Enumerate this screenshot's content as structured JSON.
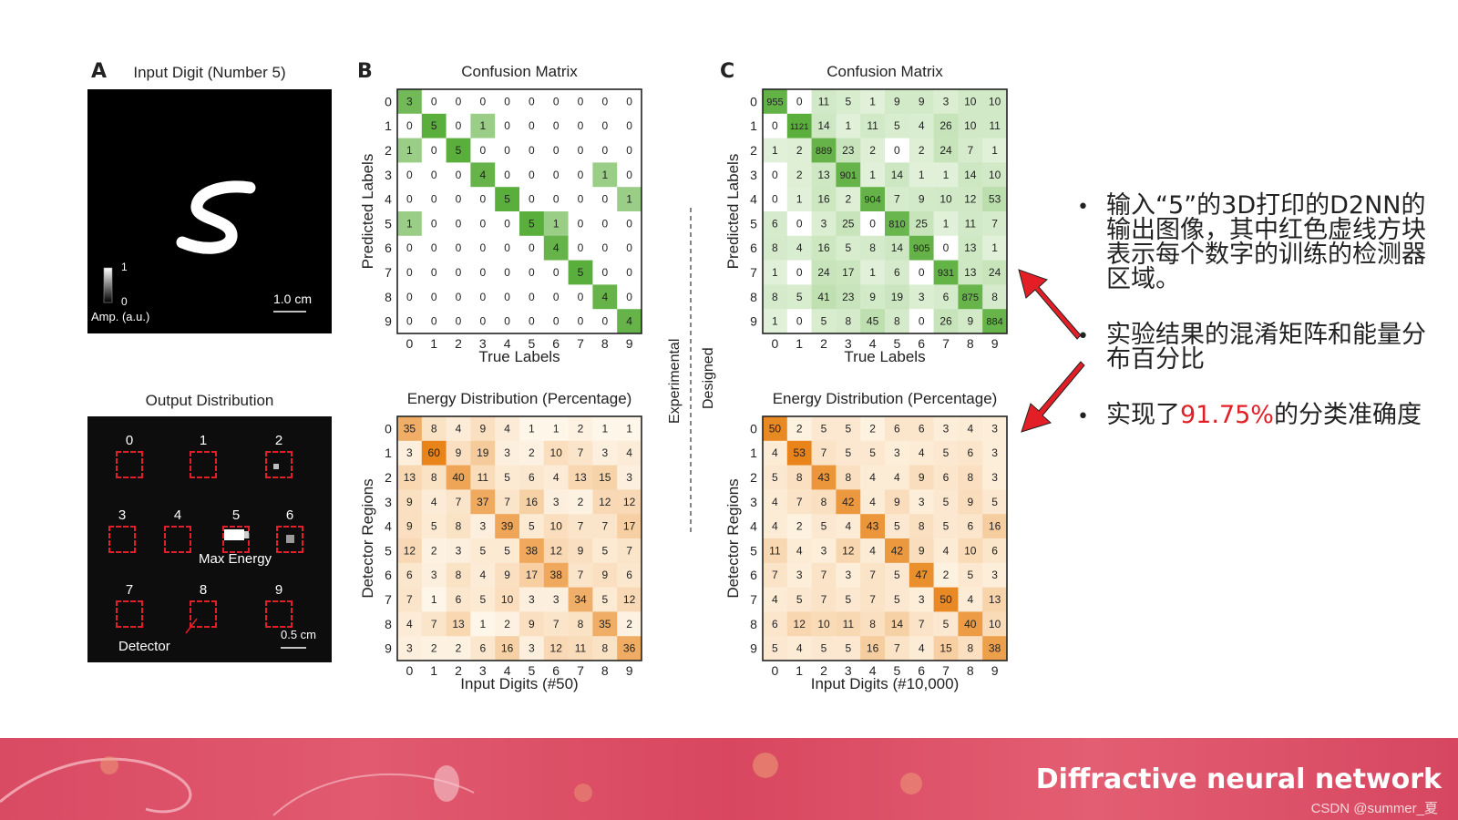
{
  "panels": {
    "a": {
      "letter": "A",
      "title": "Input Digit (Number 5)",
      "colorbar_max": "1",
      "colorbar_min": "0",
      "colorbar_label": "Amp. (a.u.)",
      "scale": "1.0 cm"
    },
    "a2": {
      "title": "Output Distribution",
      "detectors": [
        "0",
        "1",
        "2",
        "3",
        "4",
        "5",
        "6",
        "7",
        "8",
        "9"
      ],
      "max_energy_label": "Max Energy",
      "detector_label": "Detector",
      "scale": "0.5 cm"
    },
    "b": {
      "letter": "B"
    },
    "c": {
      "letter": "C"
    },
    "divider": {
      "left_label": "Experimental",
      "right_label": "Designed"
    }
  },
  "bullets": [
    {
      "text": "输入“5”的3D打印的D2NN的输出图像，其中红色虚线方块表示每个数字的训练的检测器区域。",
      "pre": "",
      "highlight": "",
      "post": ""
    },
    {
      "text": "实验结果的混淆矩阵和能量分布百分比",
      "pre": "",
      "highlight": "",
      "post": ""
    },
    {
      "text": "",
      "pre": "实现了",
      "highlight": "91.75%",
      "post": "的分类准确度"
    }
  ],
  "banner": {
    "title": "Diffractive neural network",
    "credit": "CSDN @summer_夏"
  },
  "colors": {
    "green": "#5aae3c",
    "orange": "#e8841a",
    "red_accent": "#e21f26",
    "banner": "#d94a63"
  },
  "chart_data": [
    {
      "type": "heatmap",
      "id": "B-confusion",
      "title": "Confusion Matrix",
      "xlabel": "True Labels",
      "ylabel": "Predicted Labels",
      "palette": "green",
      "x_ticks": [
        "0",
        "1",
        "2",
        "3",
        "4",
        "5",
        "6",
        "7",
        "8",
        "9"
      ],
      "y_ticks": [
        "0",
        "1",
        "2",
        "3",
        "4",
        "5",
        "6",
        "7",
        "8",
        "9"
      ],
      "max": 5,
      "values": [
        [
          3,
          0,
          0,
          0,
          0,
          0,
          0,
          0,
          0,
          0
        ],
        [
          0,
          5,
          0,
          1,
          0,
          0,
          0,
          0,
          0,
          0
        ],
        [
          1,
          0,
          5,
          0,
          0,
          0,
          0,
          0,
          0,
          0
        ],
        [
          0,
          0,
          0,
          4,
          0,
          0,
          0,
          0,
          1,
          0
        ],
        [
          0,
          0,
          0,
          0,
          5,
          0,
          0,
          0,
          0,
          1
        ],
        [
          1,
          0,
          0,
          0,
          0,
          5,
          1,
          0,
          0,
          0
        ],
        [
          0,
          0,
          0,
          0,
          0,
          0,
          4,
          0,
          0,
          0
        ],
        [
          0,
          0,
          0,
          0,
          0,
          0,
          0,
          5,
          0,
          0
        ],
        [
          0,
          0,
          0,
          0,
          0,
          0,
          0,
          0,
          4,
          0
        ],
        [
          0,
          0,
          0,
          0,
          0,
          0,
          0,
          0,
          0,
          4
        ]
      ]
    },
    {
      "type": "heatmap",
      "id": "B-energy",
      "title": "Energy Distribution (Percentage)",
      "xlabel": "Input Digits (#50)",
      "ylabel": "Detector Regions",
      "palette": "orange",
      "x_ticks": [
        "0",
        "1",
        "2",
        "3",
        "4",
        "5",
        "6",
        "7",
        "8",
        "9"
      ],
      "y_ticks": [
        "0",
        "1",
        "2",
        "3",
        "4",
        "5",
        "6",
        "7",
        "8",
        "9"
      ],
      "max": 60,
      "values": [
        [
          35,
          8,
          4,
          9,
          4,
          1,
          1,
          2,
          1,
          1
        ],
        [
          3,
          60,
          9,
          19,
          3,
          2,
          10,
          7,
          3,
          4
        ],
        [
          13,
          8,
          40,
          11,
          5,
          6,
          4,
          13,
          15,
          3
        ],
        [
          9,
          4,
          7,
          37,
          7,
          16,
          3,
          2,
          12,
          12
        ],
        [
          9,
          5,
          8,
          3,
          39,
          5,
          10,
          7,
          7,
          17
        ],
        [
          12,
          2,
          3,
          5,
          5,
          38,
          12,
          9,
          5,
          7
        ],
        [
          6,
          3,
          8,
          4,
          9,
          17,
          38,
          7,
          9,
          6
        ],
        [
          7,
          1,
          6,
          5,
          10,
          3,
          3,
          34,
          5,
          12
        ],
        [
          4,
          7,
          13,
          1,
          2,
          9,
          7,
          8,
          35,
          2
        ],
        [
          3,
          2,
          2,
          6,
          16,
          3,
          12,
          11,
          8,
          36
        ]
      ]
    },
    {
      "type": "heatmap",
      "id": "C-confusion",
      "title": "Confusion Matrix",
      "xlabel": "True Labels",
      "ylabel": "Predicted Labels",
      "palette": "green",
      "x_ticks": [
        "0",
        "1",
        "2",
        "3",
        "4",
        "5",
        "6",
        "7",
        "8",
        "9"
      ],
      "y_ticks": [
        "0",
        "1",
        "2",
        "3",
        "4",
        "5",
        "6",
        "7",
        "8",
        "9"
      ],
      "max": 1121,
      "values": [
        [
          955,
          0,
          11,
          5,
          1,
          9,
          9,
          3,
          10,
          10
        ],
        [
          0,
          1121,
          14,
          1,
          11,
          5,
          4,
          26,
          10,
          11
        ],
        [
          1,
          2,
          889,
          23,
          2,
          0,
          2,
          24,
          7,
          1
        ],
        [
          0,
          2,
          13,
          901,
          1,
          14,
          1,
          1,
          14,
          10
        ],
        [
          0,
          1,
          16,
          2,
          904,
          7,
          9,
          10,
          12,
          53
        ],
        [
          6,
          0,
          3,
          25,
          0,
          810,
          25,
          1,
          11,
          7
        ],
        [
          8,
          4,
          16,
          5,
          8,
          14,
          905,
          0,
          13,
          1
        ],
        [
          1,
          0,
          24,
          17,
          1,
          6,
          0,
          931,
          13,
          24
        ],
        [
          8,
          5,
          41,
          23,
          9,
          19,
          3,
          6,
          875,
          8
        ],
        [
          1,
          0,
          5,
          8,
          45,
          8,
          0,
          26,
          9,
          884
        ]
      ]
    },
    {
      "type": "heatmap",
      "id": "C-energy",
      "title": "Energy Distribution (Percentage)",
      "xlabel": "Input Digits (#10,000)",
      "ylabel": "Detector Regions",
      "palette": "orange",
      "x_ticks": [
        "0",
        "1",
        "2",
        "3",
        "4",
        "5",
        "6",
        "7",
        "8",
        "9"
      ],
      "y_ticks": [
        "0",
        "1",
        "2",
        "3",
        "4",
        "5",
        "6",
        "7",
        "8",
        "9"
      ],
      "max": 53,
      "values": [
        [
          50,
          2,
          5,
          5,
          2,
          6,
          6,
          3,
          4,
          3
        ],
        [
          4,
          53,
          7,
          5,
          5,
          3,
          4,
          5,
          6,
          3
        ],
        [
          5,
          8,
          43,
          8,
          4,
          4,
          9,
          6,
          8,
          3
        ],
        [
          4,
          7,
          8,
          42,
          4,
          9,
          3,
          5,
          9,
          5
        ],
        [
          4,
          2,
          5,
          4,
          43,
          5,
          8,
          5,
          6,
          16
        ],
        [
          11,
          4,
          3,
          12,
          4,
          42,
          9,
          4,
          10,
          6
        ],
        [
          7,
          3,
          7,
          3,
          7,
          5,
          47,
          2,
          5,
          3
        ],
        [
          4,
          5,
          7,
          5,
          7,
          5,
          3,
          50,
          4,
          13
        ],
        [
          6,
          12,
          10,
          11,
          8,
          14,
          7,
          5,
          40,
          10
        ],
        [
          5,
          4,
          5,
          5,
          16,
          7,
          4,
          15,
          8,
          38
        ]
      ]
    }
  ]
}
